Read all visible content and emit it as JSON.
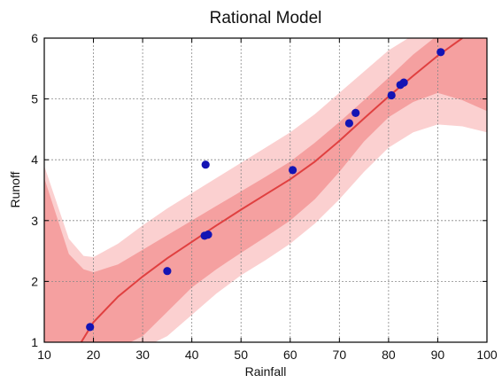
{
  "chart_data": {
    "type": "scatter",
    "title": "Rational Model",
    "xlabel": "Rainfall",
    "ylabel": "Runoff",
    "xlim": [
      10,
      100
    ],
    "ylim": [
      1,
      6
    ],
    "x_ticks": [
      "10",
      "20",
      "30",
      "40",
      "50",
      "60",
      "70",
      "80",
      "90",
      "100"
    ],
    "y_ticks": [
      "1",
      "2",
      "3",
      "4",
      "5",
      "6"
    ],
    "grid": true,
    "points": [
      {
        "x": 19.3,
        "y": 1.25
      },
      {
        "x": 35.0,
        "y": 2.17
      },
      {
        "x": 42.6,
        "y": 2.75
      },
      {
        "x": 42.8,
        "y": 3.92
      },
      {
        "x": 43.3,
        "y": 2.77
      },
      {
        "x": 60.5,
        "y": 3.83
      },
      {
        "x": 72.0,
        "y": 4.6
      },
      {
        "x": 73.3,
        "y": 4.77
      },
      {
        "x": 80.6,
        "y": 5.06
      },
      {
        "x": 82.4,
        "y": 5.23
      },
      {
        "x": 83.1,
        "y": 5.27
      },
      {
        "x": 90.6,
        "y": 5.77
      }
    ],
    "fit_curve": [
      [
        17.5,
        1.0
      ],
      [
        20,
        1.33
      ],
      [
        25,
        1.75
      ],
      [
        30,
        2.08
      ],
      [
        35,
        2.38
      ],
      [
        40,
        2.65
      ],
      [
        45,
        2.92
      ],
      [
        50,
        3.18
      ],
      [
        55,
        3.43
      ],
      [
        60,
        3.68
      ],
      [
        65,
        3.97
      ],
      [
        70,
        4.31
      ],
      [
        75,
        4.68
      ],
      [
        80,
        5.04
      ],
      [
        85,
        5.38
      ],
      [
        90,
        5.71
      ],
      [
        95,
        6.0
      ]
    ],
    "inner_band": {
      "x": [
        10,
        15,
        18,
        20,
        25,
        30,
        35,
        40,
        45,
        50,
        55,
        60,
        65,
        70,
        75,
        80,
        85,
        90,
        95,
        100
      ],
      "upper": [
        3.7,
        2.45,
        2.2,
        2.15,
        2.28,
        2.52,
        2.76,
        3.0,
        3.24,
        3.48,
        3.72,
        3.97,
        4.28,
        4.62,
        4.98,
        5.35,
        5.73,
        6.05,
        6.05,
        6.05
      ],
      "lower": [
        0.9,
        0.9,
        0.9,
        0.9,
        0.9,
        1.1,
        1.5,
        1.9,
        2.2,
        2.47,
        2.73,
        3.0,
        3.35,
        3.8,
        4.3,
        4.7,
        4.95,
        5.1,
        4.98,
        4.8
      ]
    },
    "outer_band": {
      "x": [
        10,
        15,
        18,
        20,
        25,
        30,
        35,
        40,
        45,
        50,
        55,
        60,
        65,
        70,
        75,
        80,
        85,
        90,
        95,
        100
      ],
      "upper": [
        3.9,
        2.7,
        2.42,
        2.4,
        2.62,
        2.92,
        3.2,
        3.45,
        3.7,
        3.95,
        4.2,
        4.45,
        4.75,
        5.1,
        5.45,
        5.8,
        6.05,
        6.05,
        6.05,
        6.05
      ],
      "lower": [
        0.9,
        0.9,
        0.9,
        0.9,
        0.9,
        0.9,
        1.1,
        1.45,
        1.8,
        2.1,
        2.35,
        2.62,
        2.95,
        3.35,
        3.8,
        4.2,
        4.45,
        4.58,
        4.55,
        4.45
      ]
    },
    "colors": {
      "points": "#1414b4",
      "fit_line": "#e04040",
      "inner_band": "#f5a0a0",
      "outer_band": "#fbd0d0",
      "grid": "#888888",
      "frame": "#000000"
    }
  }
}
